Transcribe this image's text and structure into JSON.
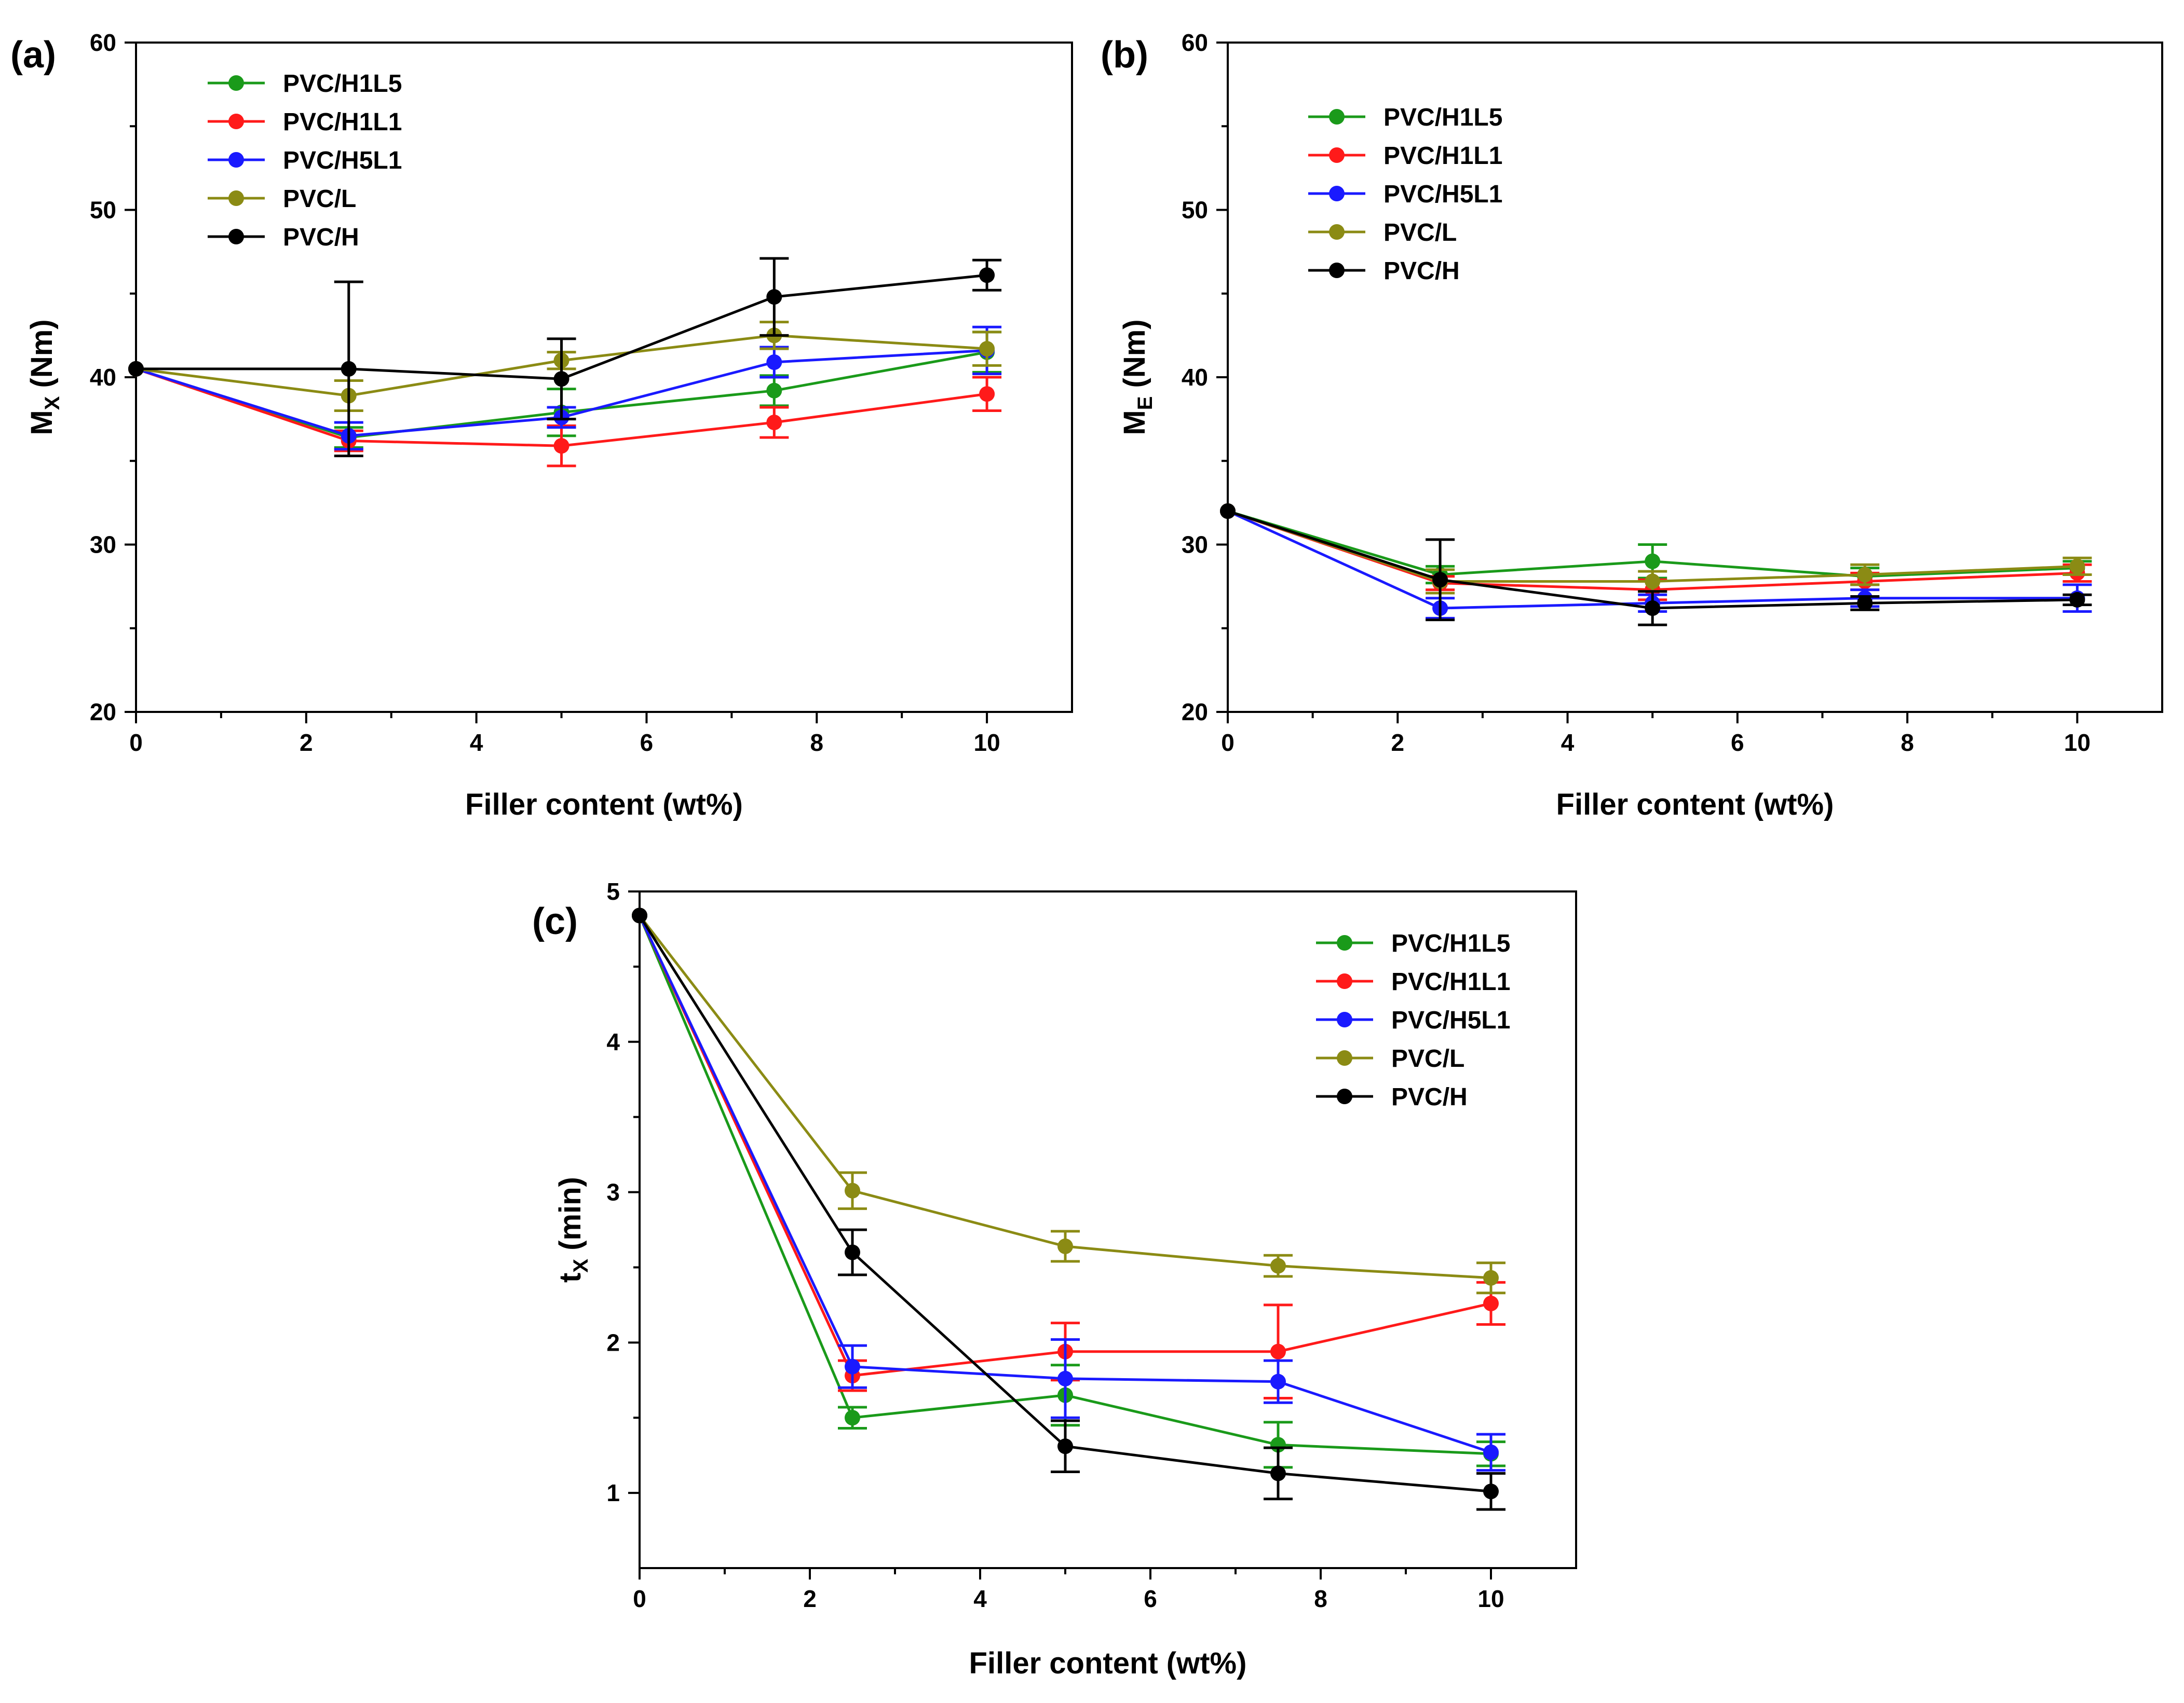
{
  "chart_data": [
    {
      "type": "line",
      "panel_label": "(a)",
      "xlabel": "Filler content (wt%)",
      "ylabel_main": "M",
      "ylabel_sub": "X",
      "ylabel_unit": " (Nm)",
      "x_ticks": [
        0,
        2,
        4,
        6,
        8,
        10
      ],
      "y_ticks": [
        20,
        30,
        40,
        50,
        60
      ],
      "xlim": [
        0,
        11
      ],
      "ylim": [
        20,
        60
      ],
      "legend_position": "top-left",
      "x": [
        0,
        2.5,
        5,
        7.5,
        10
      ],
      "series": [
        {
          "name": "PVC/H1L5",
          "color": "#1a9a1a",
          "values": [
            40.5,
            36.4,
            37.9,
            39.2,
            41.5
          ],
          "errors": [
            0,
            0.6,
            1.4,
            0.9,
            1.2
          ]
        },
        {
          "name": "PVC/H1L1",
          "color": "#ff1a1a",
          "values": [
            40.5,
            36.2,
            35.9,
            37.3,
            39.0
          ],
          "errors": [
            0,
            0.6,
            1.2,
            0.9,
            1.0
          ]
        },
        {
          "name": "PVC/H5L1",
          "color": "#1a1aff",
          "values": [
            40.5,
            36.5,
            37.6,
            40.9,
            41.6
          ],
          "errors": [
            0,
            0.8,
            0.6,
            0.9,
            1.4
          ]
        },
        {
          "name": "PVC/L",
          "color": "#8b8b14",
          "values": [
            40.5,
            38.9,
            41.0,
            42.5,
            41.7
          ],
          "errors": [
            0,
            0.9,
            0.5,
            0.8,
            1.0
          ]
        },
        {
          "name": "PVC/H",
          "color": "#000000",
          "values": [
            40.5,
            40.5,
            39.9,
            44.8,
            46.1
          ],
          "errors": [
            0,
            5.2,
            2.4,
            2.3,
            0.9
          ]
        }
      ]
    },
    {
      "type": "line",
      "panel_label": "(b)",
      "xlabel": "Filler content (wt%)",
      "ylabel_main": "M",
      "ylabel_sub": "E",
      "ylabel_unit": " (Nm)",
      "x_ticks": [
        0,
        2,
        4,
        6,
        8,
        10
      ],
      "y_ticks": [
        20,
        30,
        40,
        50,
        60
      ],
      "xlim": [
        0,
        11
      ],
      "ylim": [
        20,
        60
      ],
      "legend_position": "top-left",
      "x": [
        0,
        2.5,
        5,
        7.5,
        10
      ],
      "series": [
        {
          "name": "PVC/H1L5",
          "color": "#1a9a1a",
          "values": [
            32.0,
            28.2,
            29.0,
            28.1,
            28.6
          ],
          "errors": [
            0,
            0.5,
            1.0,
            0.5,
            0.4
          ]
        },
        {
          "name": "PVC/H1L1",
          "color": "#ff1a1a",
          "values": [
            32.0,
            27.7,
            27.3,
            27.8,
            28.3
          ],
          "errors": [
            0,
            0.4,
            0.6,
            0.5,
            0.5
          ]
        },
        {
          "name": "PVC/H5L1",
          "color": "#1a1aff",
          "values": [
            32.0,
            26.2,
            26.5,
            26.8,
            26.8
          ],
          "errors": [
            0,
            0.6,
            0.5,
            0.5,
            0.8
          ]
        },
        {
          "name": "PVC/L",
          "color": "#8b8b14",
          "values": [
            32.0,
            27.8,
            27.8,
            28.2,
            28.7
          ],
          "errors": [
            0,
            0.7,
            0.6,
            0.6,
            0.5
          ]
        },
        {
          "name": "PVC/H",
          "color": "#000000",
          "values": [
            32.0,
            27.9,
            26.2,
            26.5,
            26.7
          ],
          "errors": [
            0,
            2.4,
            1.0,
            0.4,
            0.3
          ]
        }
      ]
    },
    {
      "type": "line",
      "panel_label": "(c)",
      "xlabel": "Filler content (wt%)",
      "ylabel_main": "t",
      "ylabel_sub": "X",
      "ylabel_unit": " (min)",
      "x_ticks": [
        0,
        2,
        4,
        6,
        8,
        10
      ],
      "y_ticks": [
        1,
        2,
        3,
        4,
        5
      ],
      "xlim": [
        0,
        11
      ],
      "ylim": [
        0.5,
        5
      ],
      "legend_position": "top-right",
      "x": [
        0,
        2.5,
        5,
        7.5,
        10
      ],
      "series": [
        {
          "name": "PVC/H1L5",
          "color": "#1a9a1a",
          "values": [
            4.84,
            1.5,
            1.65,
            1.32,
            1.26
          ],
          "errors": [
            0,
            0.07,
            0.2,
            0.15,
            0.08
          ]
        },
        {
          "name": "PVC/H1L1",
          "color": "#ff1a1a",
          "values": [
            4.84,
            1.78,
            1.94,
            1.94,
            2.26
          ],
          "errors": [
            0,
            0.1,
            0.19,
            0.31,
            0.14
          ]
        },
        {
          "name": "PVC/H5L1",
          "color": "#1a1aff",
          "values": [
            4.84,
            1.84,
            1.76,
            1.74,
            1.27
          ],
          "errors": [
            0,
            0.14,
            0.26,
            0.14,
            0.12
          ]
        },
        {
          "name": "PVC/L",
          "color": "#8b8b14",
          "values": [
            4.84,
            3.01,
            2.64,
            2.51,
            2.43
          ],
          "errors": [
            0,
            0.12,
            0.1,
            0.07,
            0.1
          ]
        },
        {
          "name": "PVC/H",
          "color": "#000000",
          "values": [
            4.84,
            2.6,
            1.31,
            1.13,
            1.01
          ],
          "errors": [
            0,
            0.15,
            0.17,
            0.17,
            0.12
          ]
        }
      ]
    }
  ]
}
